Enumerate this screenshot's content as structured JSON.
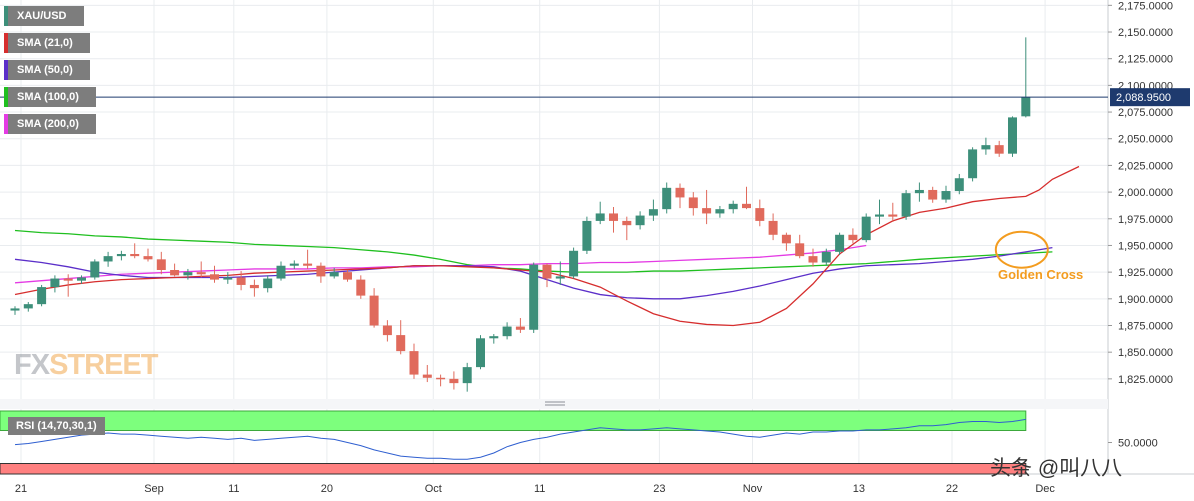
{
  "legend": [
    {
      "label": "XAU/USD",
      "color": "#3d8f7a"
    },
    {
      "label": "SMA (21,0)",
      "color": "#d62e2e"
    },
    {
      "label": "SMA (50,0)",
      "color": "#5b2fc9"
    },
    {
      "label": "SMA (100,0)",
      "color": "#1fbf1f"
    },
    {
      "label": "SMA (200,0)",
      "color": "#e43be4"
    }
  ],
  "price_tag": "2,088.9500",
  "annotation": "Golden Cross",
  "watermark": {
    "part1": "FX",
    "part2": "STREET"
  },
  "rsi_label": "RSI (14,70,30,1)",
  "rsi_axis_label": "50.0000",
  "source_watermark": "头条 @叫八八",
  "colors": {
    "up": "#3d8f7a",
    "down": "#e06a5c",
    "sma21": "#d62e2e",
    "sma50": "#5b2fc9",
    "sma100": "#1fbf1f",
    "sma200": "#e43be4",
    "annotation": "#f39c1f",
    "rsi_line": "#2f5fd0",
    "rsi_overbought": "#7dff7d",
    "rsi_oversold": "#ff8080"
  },
  "chart_data": {
    "type": "candlestick",
    "symbol": "XAU/USD",
    "y_ticks": [
      1825,
      1850,
      1875,
      1900,
      1925,
      1950,
      1975,
      2000,
      2025,
      2050,
      2075,
      2100,
      2125,
      2150,
      2175
    ],
    "y_tick_labels": [
      "1,825.0000",
      "1,850.0000",
      "1,875.0000",
      "1,900.0000",
      "1,925.0000",
      "1,950.0000",
      "1,975.0000",
      "2,000.0000",
      "2,025.0000",
      "2,050.0000",
      "2,075.0000",
      "2,100.0000",
      "2,125.0000",
      "2,150.0000",
      "2,175.0000"
    ],
    "ylim": [
      1808,
      2180
    ],
    "x_labels": [
      "21",
      "Sep",
      "11",
      "20",
      "Oct",
      "11",
      "23",
      "Nov",
      "13",
      "22",
      "Dec"
    ],
    "x_label_bars": [
      0,
      10,
      16,
      23,
      31,
      39,
      48,
      55,
      63,
      70,
      77
    ],
    "last_price": 2088.95,
    "ohlc": [
      [
        1889,
        1893,
        1885,
        1891
      ],
      [
        1891,
        1897,
        1888,
        1895
      ],
      [
        1895,
        1913,
        1893,
        1911
      ],
      [
        1911,
        1922,
        1906,
        1919
      ],
      [
        1919,
        1923,
        1902,
        1917
      ],
      [
        1917,
        1922,
        1914,
        1920
      ],
      [
        1920,
        1937,
        1918,
        1935
      ],
      [
        1935,
        1944,
        1930,
        1940
      ],
      [
        1940,
        1945,
        1936,
        1942
      ],
      [
        1942,
        1952,
        1938,
        1940
      ],
      [
        1940,
        1947,
        1935,
        1937
      ],
      [
        1937,
        1944,
        1923,
        1927
      ],
      [
        1927,
        1933,
        1921,
        1922
      ],
      [
        1922,
        1928,
        1918,
        1925
      ],
      [
        1925,
        1935,
        1920,
        1923
      ],
      [
        1923,
        1931,
        1915,
        1918
      ],
      [
        1918,
        1925,
        1914,
        1920
      ],
      [
        1920,
        1926,
        1908,
        1913
      ],
      [
        1913,
        1918,
        1902,
        1910
      ],
      [
        1910,
        1922,
        1906,
        1919
      ],
      [
        1919,
        1935,
        1917,
        1931
      ],
      [
        1931,
        1936,
        1928,
        1933
      ],
      [
        1933,
        1946,
        1928,
        1931
      ],
      [
        1931,
        1934,
        1915,
        1921
      ],
      [
        1921,
        1929,
        1919,
        1925
      ],
      [
        1925,
        1927,
        1916,
        1918
      ],
      [
        1918,
        1922,
        1900,
        1903
      ],
      [
        1903,
        1910,
        1873,
        1875
      ],
      [
        1875,
        1880,
        1860,
        1866
      ],
      [
        1866,
        1880,
        1848,
        1851
      ],
      [
        1851,
        1858,
        1825,
        1829
      ],
      [
        1829,
        1838,
        1822,
        1826
      ],
      [
        1826,
        1829,
        1818,
        1825
      ],
      [
        1825,
        1832,
        1815,
        1821
      ],
      [
        1821,
        1840,
        1813,
        1836
      ],
      [
        1836,
        1866,
        1834,
        1863
      ],
      [
        1863,
        1867,
        1858,
        1865
      ],
      [
        1865,
        1878,
        1862,
        1874
      ],
      [
        1874,
        1882,
        1868,
        1871
      ],
      [
        1871,
        1934,
        1868,
        1932
      ],
      [
        1932,
        1933,
        1911,
        1919
      ],
      [
        1919,
        1935,
        1913,
        1921
      ],
      [
        1921,
        1948,
        1919,
        1945
      ],
      [
        1945,
        1977,
        1942,
        1973
      ],
      [
        1973,
        1991,
        1970,
        1980
      ],
      [
        1980,
        1986,
        1962,
        1973
      ],
      [
        1973,
        1977,
        1955,
        1969
      ],
      [
        1969,
        1982,
        1965,
        1978
      ],
      [
        1978,
        1993,
        1973,
        1984
      ],
      [
        1984,
        2009,
        1980,
        2004
      ],
      [
        2004,
        2008,
        1985,
        1995
      ],
      [
        1995,
        2000,
        1978,
        1985
      ],
      [
        1985,
        2002,
        1970,
        1980
      ],
      [
        1980,
        1987,
        1976,
        1984
      ],
      [
        1984,
        1992,
        1980,
        1989
      ],
      [
        1989,
        2005,
        1984,
        1985
      ],
      [
        1985,
        1993,
        1968,
        1973
      ],
      [
        1973,
        1980,
        1955,
        1960
      ],
      [
        1960,
        1962,
        1945,
        1952
      ],
      [
        1952,
        1960,
        1938,
        1940
      ],
      [
        1940,
        1947,
        1930,
        1934
      ],
      [
        1934,
        1947,
        1931,
        1944
      ],
      [
        1944,
        1962,
        1941,
        1960
      ],
      [
        1960,
        1966,
        1952,
        1955
      ],
      [
        1955,
        1980,
        1953,
        1977
      ],
      [
        1977,
        1993,
        1970,
        1979
      ],
      [
        1979,
        1990,
        1972,
        1977
      ],
      [
        1977,
        2002,
        1974,
        1999
      ],
      [
        1999,
        2009,
        1991,
        2002
      ],
      [
        2002,
        2005,
        1990,
        1993
      ],
      [
        1993,
        2006,
        1990,
        2001
      ],
      [
        2001,
        2017,
        1998,
        2013
      ],
      [
        2013,
        2042,
        2010,
        2040
      ],
      [
        2040,
        2051,
        2035,
        2044
      ],
      [
        2044,
        2048,
        2033,
        2036
      ],
      [
        2036,
        2071,
        2033,
        2070
      ],
      [
        2071,
        2145,
        2070,
        2089
      ]
    ],
    "sma21": [
      1904,
      1909,
      1913,
      1916,
      1918,
      1919,
      1920,
      1921,
      1922,
      1924,
      1925,
      1926,
      1927,
      1928,
      1929,
      1931,
      1931,
      1930,
      1929,
      1927,
      1925,
      1919,
      1911,
      1898,
      1886,
      1879,
      1876,
      1875,
      1878,
      1891,
      1914,
      1942,
      1960,
      1973,
      1981,
      1985,
      1991,
      1994,
      1996,
      2002,
      2012,
      2024
    ],
    "sma21_bars": [
      0,
      2,
      4,
      6,
      8,
      10,
      12,
      14,
      16,
      18,
      20,
      22,
      24,
      26,
      28,
      30,
      32,
      34,
      36,
      38,
      40,
      42,
      44,
      46,
      48,
      50,
      52,
      54,
      56,
      58,
      60,
      62,
      64,
      66,
      68,
      70,
      72,
      74,
      76,
      77,
      78,
      80
    ],
    "sma50": [
      1937,
      1934,
      1930,
      1925,
      1922,
      1920,
      1920,
      1920,
      1920,
      1921,
      1922,
      1923,
      1925,
      1927,
      1929,
      1931,
      1931,
      1931,
      1930,
      1926,
      1918,
      1910,
      1904,
      1901,
      1900,
      1900,
      1903,
      1907,
      1912,
      1918,
      1924,
      1928,
      1931,
      1932,
      1933,
      1935,
      1937,
      1940,
      1944,
      1948
    ],
    "sma50_bars": [
      0,
      2,
      4,
      6,
      8,
      10,
      12,
      14,
      16,
      18,
      20,
      22,
      24,
      26,
      28,
      30,
      32,
      34,
      36,
      38,
      40,
      42,
      44,
      46,
      48,
      50,
      52,
      54,
      56,
      58,
      60,
      62,
      64,
      66,
      68,
      70,
      72,
      74,
      76,
      78
    ],
    "sma100": [
      1964,
      1962,
      1961,
      1959,
      1958,
      1956,
      1955,
      1954,
      1953,
      1951,
      1950,
      1949,
      1948,
      1946,
      1944,
      1941,
      1937,
      1932,
      1929,
      1928,
      1926,
      1925,
      1925,
      1925,
      1926,
      1926,
      1927,
      1928,
      1929,
      1930,
      1931,
      1932,
      1933,
      1935,
      1937,
      1940,
      1944
    ],
    "sma100_bars": [
      0,
      2,
      4,
      6,
      8,
      10,
      12,
      14,
      16,
      18,
      20,
      22,
      24,
      26,
      28,
      30,
      32,
      34,
      36,
      38,
      40,
      42,
      44,
      46,
      48,
      50,
      52,
      54,
      56,
      58,
      60,
      62,
      64,
      66,
      68,
      72,
      78
    ],
    "sma200": [
      1915,
      1917,
      1919,
      1921,
      1923,
      1924,
      1925,
      1926,
      1927,
      1928,
      1928,
      1928,
      1929,
      1929,
      1930,
      1930,
      1931,
      1931,
      1932,
      1932,
      1933,
      1933,
      1934,
      1934,
      1935,
      1936,
      1937,
      1938,
      1939,
      1941,
      1943,
      1946,
      1950
    ],
    "sma200_bars": [
      0,
      2,
      4,
      6,
      8,
      10,
      12,
      14,
      16,
      18,
      20,
      22,
      24,
      26,
      28,
      30,
      32,
      34,
      36,
      38,
      40,
      42,
      44,
      46,
      48,
      50,
      52,
      54,
      56,
      58,
      60,
      62,
      64
    ],
    "rsi": [
      48,
      49,
      51,
      53,
      55,
      57,
      58,
      59,
      58,
      58,
      57,
      56,
      55,
      54,
      55,
      54,
      53,
      54,
      52,
      53,
      54,
      55,
      56,
      54,
      53,
      50,
      47,
      43,
      40,
      37,
      36,
      35,
      35,
      34,
      34,
      36,
      40,
      46,
      50,
      53,
      55,
      58,
      60,
      62,
      64,
      63,
      62,
      62,
      63,
      64,
      63,
      62,
      61,
      60,
      58,
      56,
      55,
      57,
      59,
      58,
      60,
      60,
      61,
      61,
      62,
      62,
      63,
      64,
      66,
      66,
      67,
      69,
      70,
      70,
      69,
      70,
      72
    ],
    "rsi_ylim": [
      20,
      80
    ]
  }
}
